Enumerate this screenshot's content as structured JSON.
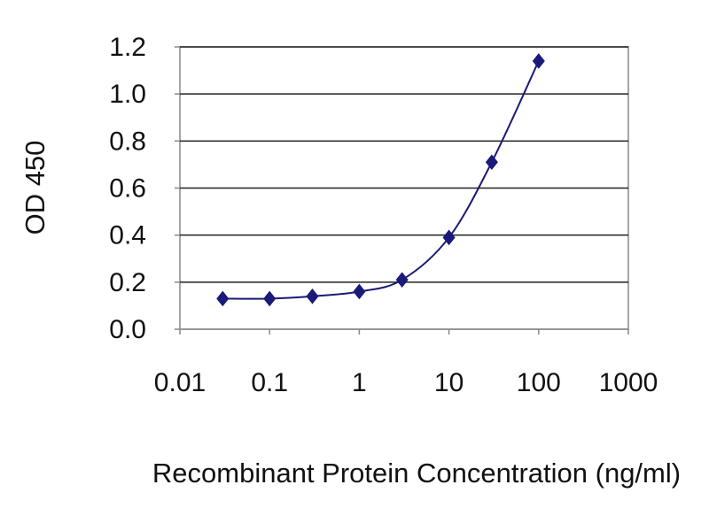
{
  "chart_data": {
    "type": "line",
    "title": "",
    "xlabel": "Recombinant Protein Concentration (ng/ml)",
    "ylabel": "OD 450",
    "x_scale": "log",
    "xlim": [
      0.01,
      1000
    ],
    "ylim": [
      0.0,
      1.2
    ],
    "x_ticks": [
      0.01,
      0.1,
      1,
      10,
      100,
      1000
    ],
    "x_tick_labels": [
      "0.01",
      "0.1",
      "1",
      "10",
      "100",
      "1000"
    ],
    "y_ticks": [
      0.0,
      0.2,
      0.4,
      0.6,
      0.8,
      1.0,
      1.2
    ],
    "y_tick_labels": [
      "0.0",
      "0.2",
      "0.4",
      "0.6",
      "0.8",
      "1.0",
      "1.2"
    ],
    "grid": "horizontal",
    "legend": "none",
    "series": [
      {
        "x": [
          0.03,
          0.1,
          0.3,
          1,
          3,
          10,
          30,
          100
        ],
        "y": [
          0.13,
          0.13,
          0.14,
          0.16,
          0.21,
          0.39,
          0.71,
          1.14
        ],
        "marker": "diamond",
        "color": "#1a1a78"
      }
    ]
  }
}
